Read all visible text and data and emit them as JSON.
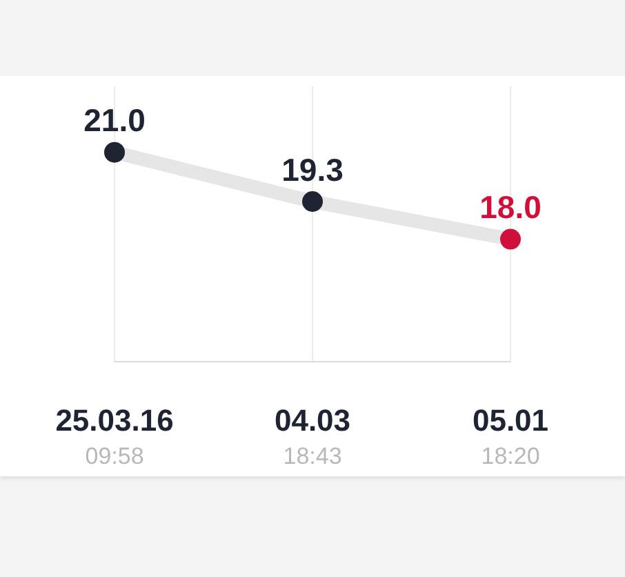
{
  "chart_data": {
    "type": "line",
    "categories": [
      "25.03.16\n09:58",
      "04.03\n18:43",
      "05.01\n18:20"
    ],
    "series": [
      {
        "color": "#e6e6e6",
        "colors": [
          "#1f2433",
          "#1f2433",
          "#d0103a"
        ],
        "values": [
          21.0,
          19.3,
          18.0
        ],
        "value_labels": [
          "21.0",
          "19.3",
          "18.0"
        ]
      }
    ],
    "grid": "x",
    "legend": false,
    "marker": "circle",
    "line_style": "solid"
  }
}
